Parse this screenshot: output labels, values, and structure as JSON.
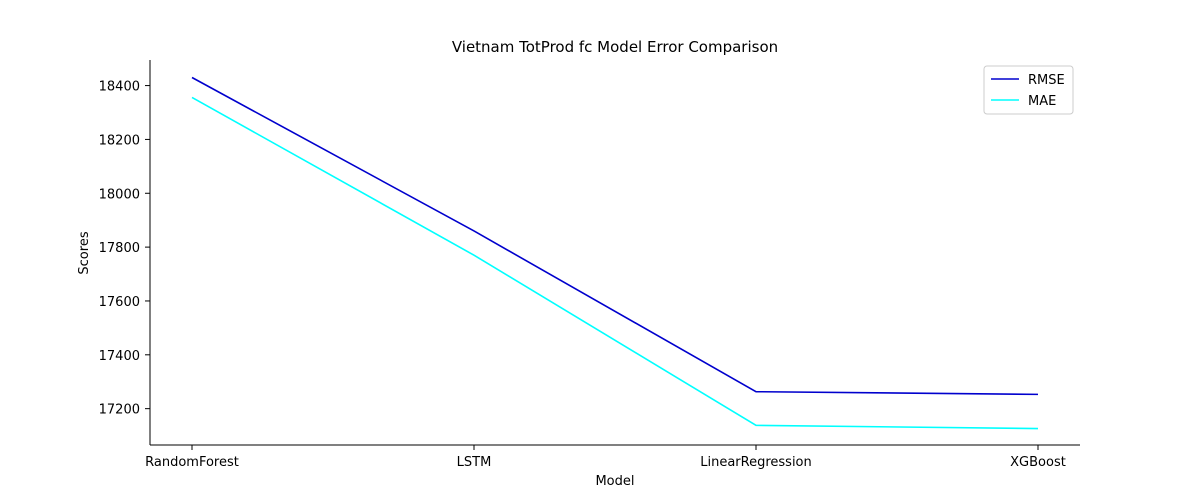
{
  "chart_data": {
    "type": "line",
    "title": "Vietnam TotProd fc Model Error Comparison",
    "xlabel": "Model",
    "ylabel": "Scores",
    "categories": [
      "RandomForest",
      "LSTM",
      "LinearRegression",
      "XGBoost"
    ],
    "series": [
      {
        "name": "RMSE",
        "color": "#0000cd",
        "values": [
          18430,
          17860,
          17263,
          17253
        ]
      },
      {
        "name": "MAE",
        "color": "#00ffff",
        "values": [
          18356,
          17770,
          17138,
          17126
        ]
      }
    ],
    "yticks": [
      17200,
      17400,
      17600,
      17800,
      18000,
      18200,
      18400
    ],
    "ylim": [
      17065,
      18495
    ],
    "grid": false,
    "legend_position": "top-right"
  }
}
